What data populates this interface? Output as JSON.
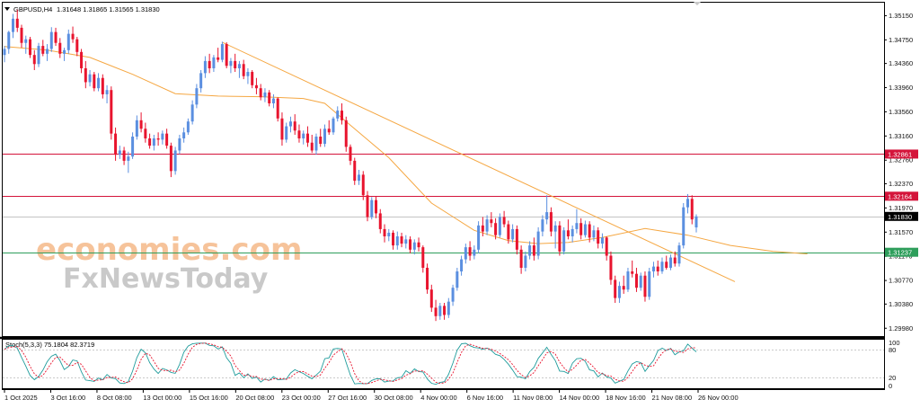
{
  "header": {
    "menu_icon": "triangle-down-icon",
    "symbol_timeframe": "GBPUSD,H4",
    "ohlc": "1.31648 1.31865 1.31565 1.31830"
  },
  "watermark": {
    "brand_top": "economies.com",
    "brand_bottom": "FxNewsToday",
    "icon": "triangle-down-icon"
  },
  "colors": {
    "bull": "#5b8fe0",
    "bear": "#e8142e",
    "ma": "#f5a742",
    "trendline": "#f5a742",
    "resistance": "#d4143a",
    "support": "#2e9e5b",
    "current_price": "#000000",
    "stoch_main": "#1f9c9c",
    "stoch_signal": "#e8142e"
  },
  "price_labels": {
    "resistance_1": "1.32861",
    "resistance_2": "1.32164",
    "current": "1.31830",
    "support": "1.31237"
  },
  "stoch_header": "Stoch(5,3,3) 75.1804 82.3719",
  "chart_data": [
    {
      "type": "candlestick",
      "symbol": "GBPUSD",
      "timeframe": "H4",
      "y_ticks": [
        "1.35150",
        "1.34750",
        "1.34360",
        "1.33960",
        "1.33560",
        "1.33160",
        "1.32760",
        "1.32370",
        "1.31970",
        "1.31570",
        "1.31170",
        "1.30770",
        "1.30380",
        "1.29980"
      ],
      "ylim": [
        1.2985,
        1.3535
      ],
      "x_ticks": [
        "1 Oct 2025",
        "3 Oct 16:00",
        "8 Oct 08:00",
        "13 Oct 00:00",
        "15 Oct 16:00",
        "20 Oct 08:00",
        "23 Oct 00:00",
        "27 Oct 16:00",
        "30 Oct 08:00",
        "4 Nov 00:00",
        "6 Nov 16:00",
        "11 Nov 08:00",
        "14 Nov 00:00",
        "18 Nov 16:00",
        "21 Nov 08:00",
        "26 Nov 00:00"
      ],
      "last_close": 1.3183,
      "horizontal_levels": [
        {
          "label": "1.32861",
          "value": 1.32861,
          "kind": "resistance"
        },
        {
          "label": "1.32164",
          "value": 1.32164,
          "kind": "resistance"
        },
        {
          "label": "1.31830",
          "value": 1.3183,
          "kind": "current"
        },
        {
          "label": "1.31237",
          "value": 1.31237,
          "kind": "support"
        }
      ],
      "trendline": {
        "start": [
          "15 Oct 16:00",
          1.3471
        ],
        "end": [
          "26 Nov 04:00",
          1.3075
        ]
      },
      "moving_average_path": [
        [
          0,
          1.3464
        ],
        [
          10,
          1.3458
        ],
        [
          20,
          1.3446
        ],
        [
          30,
          1.3418
        ],
        [
          40,
          1.3386
        ],
        [
          50,
          1.3382
        ],
        [
          60,
          1.3381
        ],
        [
          70,
          1.3378
        ],
        [
          75,
          1.337
        ],
        [
          80,
          1.334
        ],
        [
          90,
          1.328
        ],
        [
          100,
          1.3205
        ],
        [
          110,
          1.316
        ],
        [
          118,
          1.3143
        ],
        [
          125,
          1.3138
        ],
        [
          132,
          1.314
        ],
        [
          140,
          1.3148
        ],
        [
          150,
          1.3163
        ],
        [
          160,
          1.3152
        ],
        [
          170,
          1.3135
        ],
        [
          180,
          1.3125
        ],
        [
          188,
          1.3121
        ]
      ],
      "ohlc": [
        [
          1.345,
          1.3465,
          1.3438,
          1.346
        ],
        [
          1.346,
          1.349,
          1.3452,
          1.3488
        ],
        [
          1.3488,
          1.3518,
          1.3478,
          1.351
        ],
        [
          1.351,
          1.3525,
          1.3488,
          1.3495
        ],
        [
          1.3495,
          1.35,
          1.3462,
          1.347
        ],
        [
          1.347,
          1.3482,
          1.3452,
          1.3476
        ],
        [
          1.3476,
          1.348,
          1.3445,
          1.345
        ],
        [
          1.345,
          1.3458,
          1.3425,
          1.3435
        ],
        [
          1.3435,
          1.347,
          1.343,
          1.3465
        ],
        [
          1.3465,
          1.3475,
          1.3448,
          1.3452
        ],
        [
          1.3452,
          1.3468,
          1.344,
          1.346
        ],
        [
          1.346,
          1.3496,
          1.3455,
          1.3488
        ],
        [
          1.3488,
          1.3495,
          1.3465,
          1.347
        ],
        [
          1.347,
          1.3478,
          1.3445,
          1.3452
        ],
        [
          1.3452,
          1.3462,
          1.344,
          1.3458
        ],
        [
          1.3458,
          1.3492,
          1.3452,
          1.3485
        ],
        [
          1.3485,
          1.3497,
          1.347,
          1.3476
        ],
        [
          1.3476,
          1.348,
          1.3448,
          1.3455
        ],
        [
          1.3455,
          1.346,
          1.342,
          1.3428
        ],
        [
          1.3428,
          1.344,
          1.3395,
          1.3405
        ],
        [
          1.3405,
          1.3425,
          1.3398,
          1.3418
        ],
        [
          1.3418,
          1.3422,
          1.339,
          1.3395
        ],
        [
          1.3395,
          1.342,
          1.339,
          1.3412
        ],
        [
          1.3412,
          1.3418,
          1.3378,
          1.3385
        ],
        [
          1.3385,
          1.34,
          1.337,
          1.3392
        ],
        [
          1.3392,
          1.3398,
          1.331,
          1.332
        ],
        [
          1.332,
          1.333,
          1.3275,
          1.3285
        ],
        [
          1.3285,
          1.33,
          1.3278,
          1.3292
        ],
        [
          1.3292,
          1.3298,
          1.3268,
          1.3275
        ],
        [
          1.3275,
          1.329,
          1.3255,
          1.3282
        ],
        [
          1.3282,
          1.3322,
          1.3278,
          1.3315
        ],
        [
          1.3315,
          1.335,
          1.331,
          1.3342
        ],
        [
          1.3342,
          1.3355,
          1.3322,
          1.3328
        ],
        [
          1.3328,
          1.3338,
          1.3305,
          1.3312
        ],
        [
          1.3312,
          1.332,
          1.3295,
          1.33
        ],
        [
          1.33,
          1.3318,
          1.3292,
          1.3312
        ],
        [
          1.3312,
          1.3322,
          1.33,
          1.331
        ],
        [
          1.331,
          1.3325,
          1.3302,
          1.332
        ],
        [
          1.332,
          1.3328,
          1.3295,
          1.33
        ],
        [
          1.33,
          1.3305,
          1.3248,
          1.3258
        ],
        [
          1.3258,
          1.3298,
          1.3252,
          1.3292
        ],
        [
          1.3292,
          1.3318,
          1.3286,
          1.3312
        ],
        [
          1.3312,
          1.333,
          1.3305,
          1.3322
        ],
        [
          1.3322,
          1.3345,
          1.3318,
          1.334
        ],
        [
          1.334,
          1.3375,
          1.3335,
          1.3368
        ],
        [
          1.3368,
          1.3402,
          1.3362,
          1.3395
        ],
        [
          1.3395,
          1.3425,
          1.3388,
          1.342
        ],
        [
          1.342,
          1.3448,
          1.3412,
          1.344
        ],
        [
          1.344,
          1.3452,
          1.342,
          1.3428
        ],
        [
          1.3428,
          1.345,
          1.3422,
          1.3446
        ],
        [
          1.3446,
          1.3462,
          1.3438,
          1.3442
        ],
        [
          1.3442,
          1.3472,
          1.3438,
          1.3468
        ],
        [
          1.3468,
          1.3471,
          1.3428,
          1.3432
        ],
        [
          1.3432,
          1.3445,
          1.342,
          1.344
        ],
        [
          1.344,
          1.3452,
          1.3422,
          1.3428
        ],
        [
          1.3428,
          1.344,
          1.3412,
          1.3435
        ],
        [
          1.3435,
          1.3442,
          1.341,
          1.3415
        ],
        [
          1.3415,
          1.3428,
          1.3402,
          1.3422
        ],
        [
          1.3422,
          1.3425,
          1.3395,
          1.34
        ],
        [
          1.34,
          1.3412,
          1.3385,
          1.3395
        ],
        [
          1.3395,
          1.3402,
          1.3375,
          1.338
        ],
        [
          1.338,
          1.3395,
          1.3372,
          1.3388
        ],
        [
          1.3388,
          1.3392,
          1.3365,
          1.337
        ],
        [
          1.337,
          1.3385,
          1.3362,
          1.3378
        ],
        [
          1.3378,
          1.338,
          1.334,
          1.3345
        ],
        [
          1.3345,
          1.3355,
          1.33,
          1.331
        ],
        [
          1.331,
          1.3338,
          1.3305,
          1.3332
        ],
        [
          1.3332,
          1.3348,
          1.3322,
          1.334
        ],
        [
          1.334,
          1.3352,
          1.3318,
          1.3325
        ],
        [
          1.3325,
          1.3335,
          1.3305,
          1.3312
        ],
        [
          1.3312,
          1.3325,
          1.3302,
          1.332
        ],
        [
          1.332,
          1.3332,
          1.3298,
          1.3305
        ],
        [
          1.3305,
          1.3318,
          1.3288,
          1.3292
        ],
        [
          1.3292,
          1.332,
          1.3285,
          1.3315
        ],
        [
          1.3315,
          1.3328,
          1.3298,
          1.3303
        ],
        [
          1.3303,
          1.3335,
          1.3298,
          1.3328
        ],
        [
          1.3328,
          1.3342,
          1.3318,
          1.3322
        ],
        [
          1.3322,
          1.3348,
          1.3318,
          1.3345
        ],
        [
          1.3345,
          1.3365,
          1.334,
          1.3358
        ],
        [
          1.3358,
          1.337,
          1.3335,
          1.3342
        ],
        [
          1.3342,
          1.3348,
          1.329,
          1.3298
        ],
        [
          1.3298,
          1.3302,
          1.3268,
          1.3275
        ],
        [
          1.3275,
          1.328,
          1.3235,
          1.3242
        ],
        [
          1.3242,
          1.326,
          1.3235,
          1.3252
        ],
        [
          1.3252,
          1.3258,
          1.321,
          1.3218
        ],
        [
          1.3218,
          1.3225,
          1.3175,
          1.3182
        ],
        [
          1.3182,
          1.3215,
          1.3178,
          1.321
        ],
        [
          1.321,
          1.3216,
          1.318,
          1.3188
        ],
        [
          1.3188,
          1.3195,
          1.3155,
          1.3162
        ],
        [
          1.3162,
          1.317,
          1.314,
          1.315
        ],
        [
          1.315,
          1.3162,
          1.3142,
          1.3156
        ],
        [
          1.3156,
          1.316,
          1.3128,
          1.3135
        ],
        [
          1.3135,
          1.3158,
          1.3128,
          1.315
        ],
        [
          1.315,
          1.3156,
          1.3132,
          1.3138
        ],
        [
          1.3138,
          1.3152,
          1.313,
          1.3145
        ],
        [
          1.3145,
          1.315,
          1.3122,
          1.3128
        ],
        [
          1.3128,
          1.3145,
          1.312,
          1.314
        ],
        [
          1.314,
          1.3148,
          1.3125,
          1.3132
        ],
        [
          1.3132,
          1.3135,
          1.309,
          1.3098
        ],
        [
          1.3098,
          1.3105,
          1.3055,
          1.3062
        ],
        [
          1.3062,
          1.307,
          1.3025,
          1.3032
        ],
        [
          1.3032,
          1.3045,
          1.301,
          1.3018
        ],
        [
          1.3018,
          1.304,
          1.3012,
          1.3035
        ],
        [
          1.3035,
          1.304,
          1.3012,
          1.302
        ],
        [
          1.302,
          1.3048,
          1.3015,
          1.3042
        ],
        [
          1.3042,
          1.307,
          1.3035,
          1.3065
        ],
        [
          1.3065,
          1.3098,
          1.306,
          1.3092
        ],
        [
          1.3092,
          1.3118,
          1.3085,
          1.3112
        ],
        [
          1.3112,
          1.3138,
          1.3105,
          1.3132
        ],
        [
          1.3132,
          1.3142,
          1.311,
          1.3118
        ],
        [
          1.3118,
          1.3135,
          1.3112,
          1.3128
        ],
        [
          1.3128,
          1.3175,
          1.3122,
          1.3168
        ],
        [
          1.3168,
          1.3182,
          1.315,
          1.3158
        ],
        [
          1.3158,
          1.3185,
          1.3152,
          1.3178
        ],
        [
          1.3178,
          1.319,
          1.3165,
          1.3172
        ],
        [
          1.3172,
          1.318,
          1.3145,
          1.3152
        ],
        [
          1.3152,
          1.3188,
          1.3148,
          1.3182
        ],
        [
          1.3182,
          1.3192,
          1.3165,
          1.317
        ],
        [
          1.317,
          1.3176,
          1.3138,
          1.3145
        ],
        [
          1.3145,
          1.317,
          1.314,
          1.3162
        ],
        [
          1.3162,
          1.3168,
          1.312,
          1.3128
        ],
        [
          1.3128,
          1.3135,
          1.3088,
          1.3098
        ],
        [
          1.3098,
          1.3125,
          1.3092,
          1.3118
        ],
        [
          1.3118,
          1.3142,
          1.3112,
          1.3135
        ],
        [
          1.3135,
          1.3148,
          1.311,
          1.3118
        ],
        [
          1.3118,
          1.3165,
          1.3112,
          1.3158
        ],
        [
          1.3158,
          1.3185,
          1.315,
          1.3178
        ],
        [
          1.3178,
          1.3218,
          1.317,
          1.319
        ],
        [
          1.319,
          1.3198,
          1.315,
          1.3158
        ],
        [
          1.3158,
          1.3175,
          1.313,
          1.3168
        ],
        [
          1.3168,
          1.3175,
          1.3118,
          1.3125
        ],
        [
          1.3125,
          1.3165,
          1.312,
          1.316
        ],
        [
          1.316,
          1.3178,
          1.3145,
          1.315
        ],
        [
          1.315,
          1.3168,
          1.314,
          1.3162
        ],
        [
          1.3162,
          1.3195,
          1.3155,
          1.3172
        ],
        [
          1.3172,
          1.318,
          1.3145,
          1.3152
        ],
        [
          1.3152,
          1.3176,
          1.3148,
          1.317
        ],
        [
          1.317,
          1.3175,
          1.314,
          1.3148
        ],
        [
          1.3148,
          1.3168,
          1.3142,
          1.316
        ],
        [
          1.316,
          1.3165,
          1.313,
          1.3138
        ],
        [
          1.3138,
          1.3155,
          1.313,
          1.3148
        ],
        [
          1.3148,
          1.315,
          1.311,
          1.3118
        ],
        [
          1.3118,
          1.3125,
          1.307,
          1.3078
        ],
        [
          1.3078,
          1.3085,
          1.304,
          1.3048
        ],
        [
          1.3048,
          1.3075,
          1.304,
          1.3068
        ],
        [
          1.3068,
          1.3085,
          1.3055,
          1.3062
        ],
        [
          1.3062,
          1.3098,
          1.3058,
          1.3092
        ],
        [
          1.3092,
          1.311,
          1.3082,
          1.3088
        ],
        [
          1.3088,
          1.3098,
          1.3058,
          1.3065
        ],
        [
          1.3065,
          1.309,
          1.306,
          1.3085
        ],
        [
          1.3085,
          1.3092,
          1.3042,
          1.305
        ],
        [
          1.305,
          1.3098,
          1.3045,
          1.3092
        ],
        [
          1.3092,
          1.3108,
          1.3082,
          1.31
        ],
        [
          1.31,
          1.311,
          1.3085,
          1.3092
        ],
        [
          1.3092,
          1.3115,
          1.3088,
          1.3108
        ],
        [
          1.3108,
          1.3118,
          1.3095,
          1.3098
        ],
        [
          1.3098,
          1.312,
          1.3094,
          1.3115
        ],
        [
          1.3115,
          1.3125,
          1.31,
          1.3105
        ],
        [
          1.3105,
          1.314,
          1.31,
          1.3135
        ],
        [
          1.3135,
          1.3205,
          1.313,
          1.3198
        ],
        [
          1.3198,
          1.322,
          1.3188,
          1.3212
        ],
        [
          1.3212,
          1.3218,
          1.317,
          1.3178
        ],
        [
          1.31648,
          1.31865,
          1.31565,
          1.3183
        ]
      ]
    },
    {
      "type": "line",
      "indicator": "Stoch(5,3,3)",
      "values_text": "75.1804 82.3719",
      "y_ticks": [
        "100",
        "80",
        "20",
        "0"
      ],
      "ylim": [
        0,
        100
      ],
      "levels": [
        80,
        20
      ],
      "series": [
        {
          "name": "main",
          "last": 75.1804
        },
        {
          "name": "signal",
          "last": 82.3719
        }
      ]
    }
  ]
}
